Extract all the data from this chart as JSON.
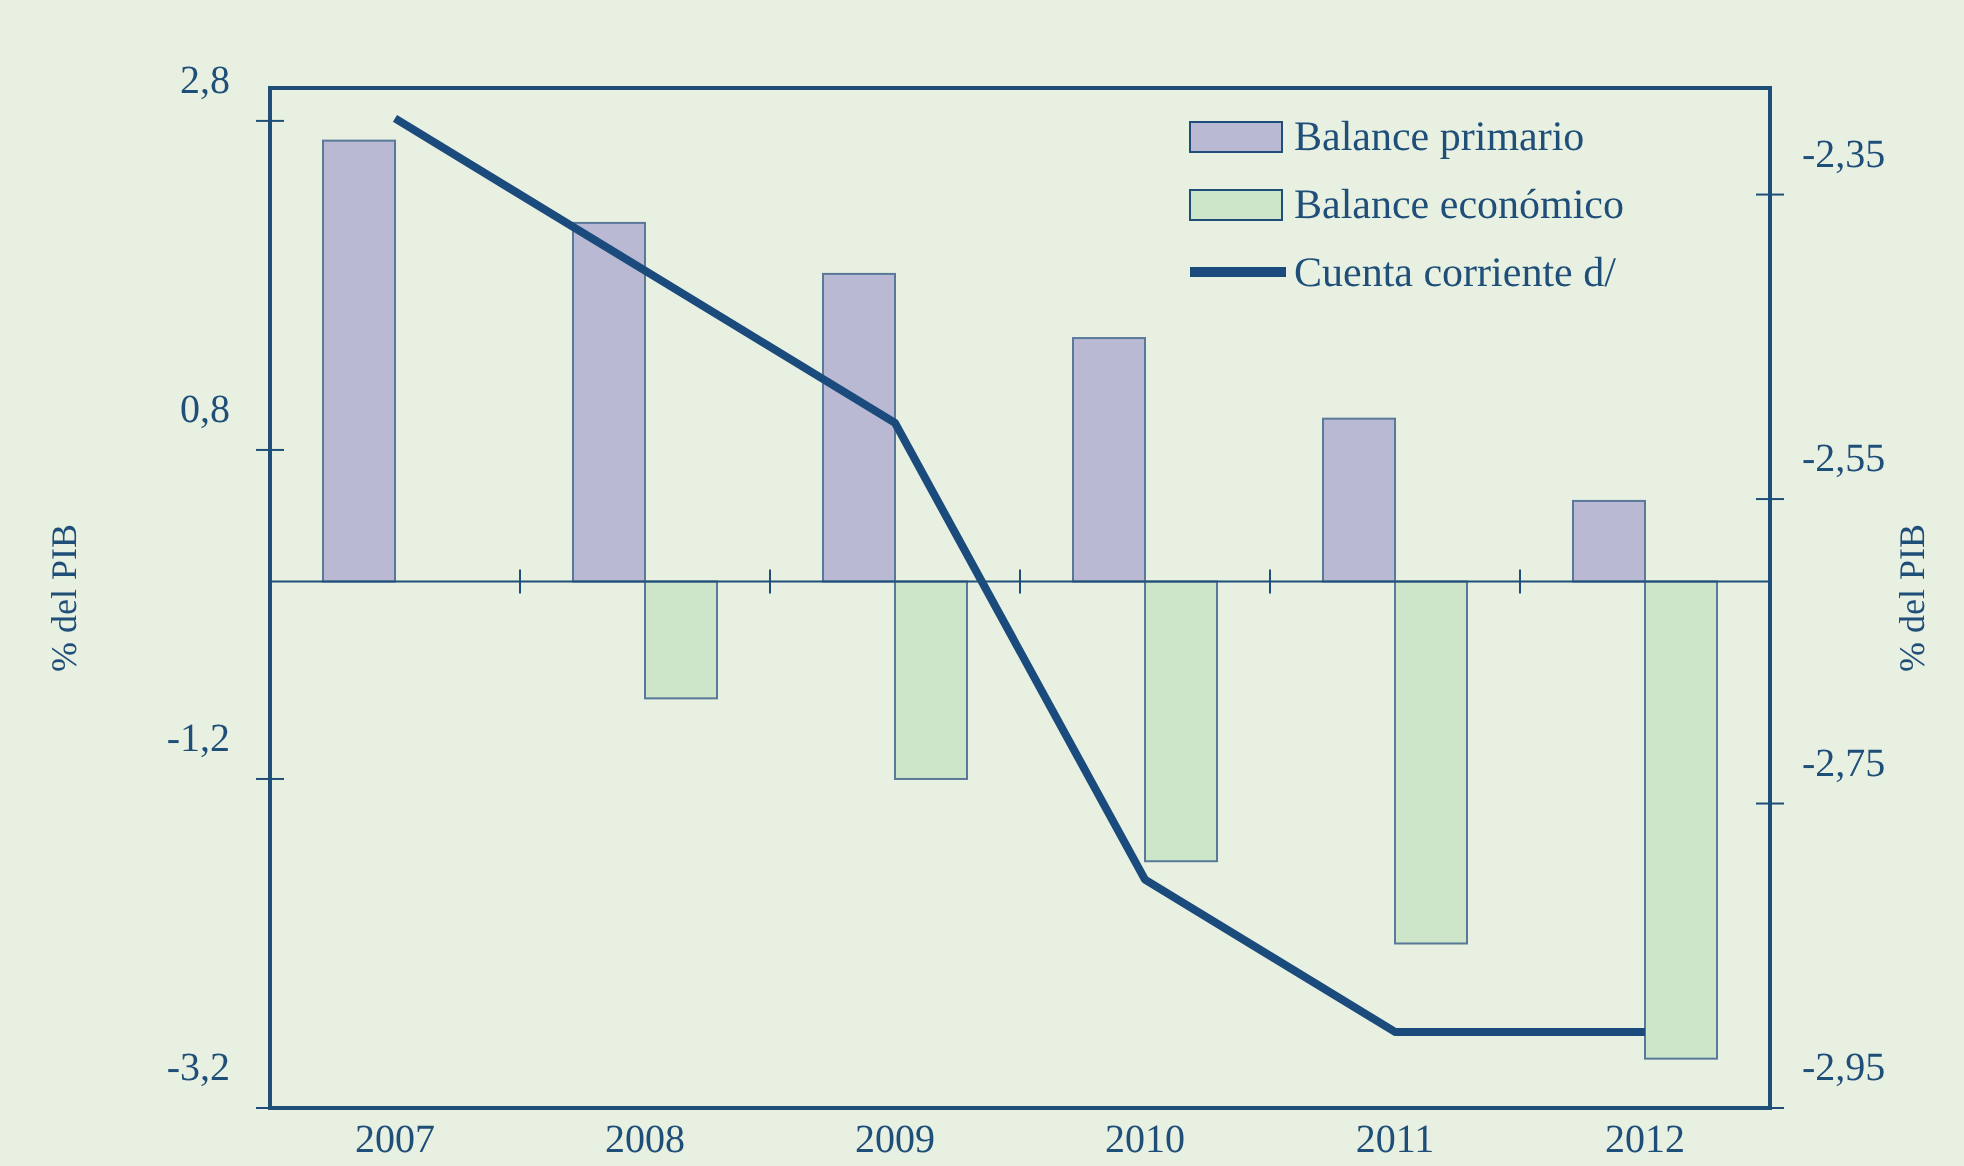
{
  "chart_data": {
    "type": "bar",
    "categories": [
      "2007",
      "2008",
      "2009",
      "2010",
      "2011",
      "2012"
    ],
    "series": [
      {
        "name": "Balance primario",
        "color": "#b9b9d3",
        "values": [
          2.68,
          2.18,
          1.87,
          1.48,
          0.99,
          0.49
        ]
      },
      {
        "name": "Balance económico",
        "color": "#cde6c9",
        "values": [
          null,
          -0.71,
          -1.2,
          -1.7,
          -2.2,
          -2.9
        ]
      },
      {
        "name": "Cuenta corriente d/",
        "type": "line",
        "axis": "y2",
        "color": "#1b4a7c",
        "values": [
          -2.3,
          -2.4,
          -2.5,
          -2.8,
          -2.9,
          -2.9
        ]
      }
    ],
    "ylabel": "% del PIB",
    "y2label": "% del PIB",
    "ylim": [
      -3.2,
      3.0
    ],
    "yticks": [
      {
        "value": 2.8,
        "label": "2,8"
      },
      {
        "value": 0.8,
        "label": "0,8"
      },
      {
        "value": -1.2,
        "label": "-1,2"
      },
      {
        "value": -3.2,
        "label": "-3,2"
      }
    ],
    "y2lim": [
      -2.95,
      -2.28
    ],
    "y2ticks": [
      {
        "value": -2.35,
        "label": "-2,35"
      },
      {
        "value": -2.55,
        "label": "-2,55"
      },
      {
        "value": -2.75,
        "label": "-2,75"
      },
      {
        "value": -2.95,
        "label": "-2,95"
      }
    ],
    "ref_lines": [
      {
        "axis": "y",
        "value": 0,
        "color": "#1f4e79"
      }
    ],
    "legend": "top right",
    "grid": false
  }
}
